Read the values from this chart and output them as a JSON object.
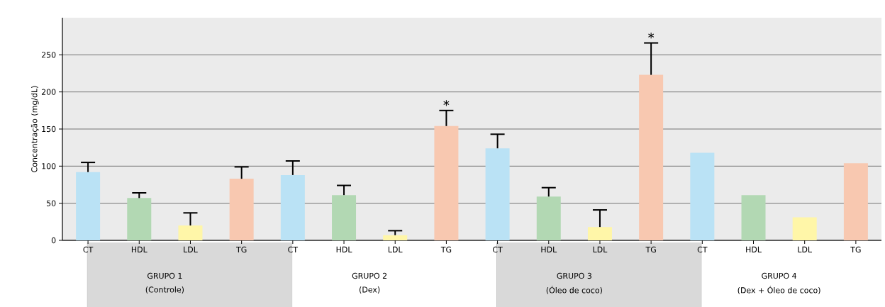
{
  "chart_data": {
    "type": "bar",
    "ylabel": "Concentração (mg/dL)",
    "categories": [
      "CT",
      "HDL",
      "LDL",
      "TG",
      "CT",
      "HDL",
      "LDL",
      "TG",
      "CT",
      "HDL",
      "LDL",
      "TG",
      "CT",
      "HDL",
      "LDL",
      "TG"
    ],
    "values": [
      92,
      57,
      20,
      83,
      88,
      61,
      7,
      154,
      124,
      59,
      18,
      223,
      118,
      61,
      31,
      104
    ],
    "errors": [
      13,
      7,
      17,
      16,
      19,
      13,
      6,
      21,
      19,
      12,
      23,
      43,
      null,
      null,
      null,
      null
    ],
    "colors": [
      "#bae2f5",
      "#b2d8b3",
      "#fff6a8",
      "#f8c8b0",
      "#bae2f5",
      "#b2d8b3",
      "#fff6a8",
      "#f8c8b0",
      "#bae2f5",
      "#b2d8b3",
      "#fff6a8",
      "#f8c8b0",
      "#bae2f5",
      "#b2d8b3",
      "#fff6a8",
      "#f8c8b0"
    ],
    "value_labels": [
      null,
      null,
      null,
      null,
      null,
      null,
      null,
      "*",
      null,
      null,
      null,
      "*",
      null,
      null,
      null,
      null
    ],
    "annotations": [
      "GRUPO 1",
      "(Controle)",
      "GRUPO 2",
      "(Dex)",
      "GRUPO 3",
      "(Óleo de coco)",
      "GRUPO 4",
      "(Dex + Óleo de coco)"
    ],
    "ylim": [
      0,
      300
    ],
    "yticks": [
      0,
      50,
      100,
      150,
      200,
      250
    ],
    "grid": "y"
  }
}
